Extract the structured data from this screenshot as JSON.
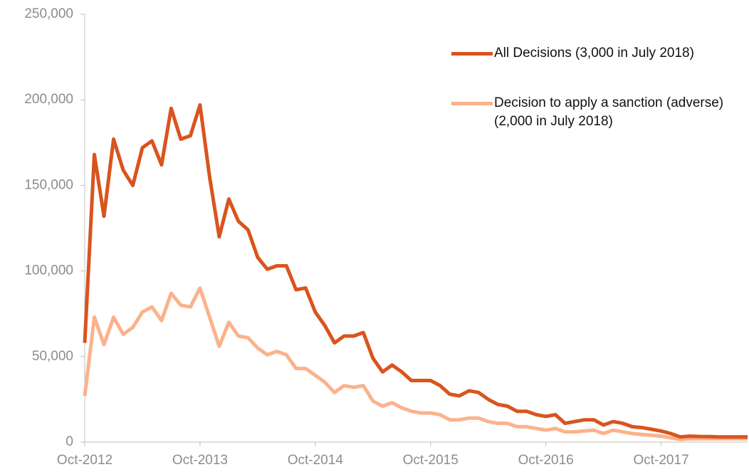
{
  "chart_data": {
    "type": "line",
    "categories": [
      "Oct-2012",
      null,
      null,
      null,
      null,
      null,
      null,
      null,
      null,
      null,
      null,
      null,
      "Oct-2013",
      null,
      null,
      null,
      null,
      null,
      null,
      null,
      null,
      null,
      null,
      null,
      "Oct-2014",
      null,
      null,
      null,
      null,
      null,
      null,
      null,
      null,
      null,
      null,
      null,
      "Oct-2015",
      null,
      null,
      null,
      null,
      null,
      null,
      null,
      null,
      null,
      null,
      null,
      "Oct-2016",
      null,
      null,
      null,
      null,
      null,
      null,
      null,
      null,
      null,
      null,
      null,
      "Oct-2017",
      null,
      null,
      null,
      null,
      null,
      null,
      null,
      null,
      null
    ],
    "series": [
      {
        "name": "All Decisions (3,000 in July 2018)",
        "color": "#d9541e",
        "values": [
          58000,
          168000,
          132000,
          177000,
          159000,
          150000,
          172000,
          176000,
          162000,
          195000,
          177000,
          179000,
          197000,
          155000,
          120000,
          142000,
          129000,
          124000,
          108000,
          101000,
          103000,
          103000,
          89000,
          90000,
          76000,
          68000,
          58000,
          62000,
          62000,
          64000,
          49000,
          41000,
          45000,
          41000,
          36000,
          36000,
          36000,
          33000,
          28000,
          27000,
          30000,
          29000,
          25000,
          22000,
          21000,
          18000,
          18000,
          16000,
          15000,
          16000,
          11000,
          12000,
          13000,
          13000,
          10000,
          12000,
          11000,
          9000,
          8500,
          7500,
          6500,
          5000,
          3000,
          3500,
          3300,
          3200,
          3000,
          3000,
          3000,
          3000
        ]
      },
      {
        "name": "Decision to apply a sanction (adverse) (2,000 in July 2018)",
        "color": "#fbb28c",
        "values": [
          27000,
          73000,
          57000,
          73000,
          63000,
          67000,
          76000,
          79000,
          71000,
          87000,
          80000,
          79000,
          90000,
          73000,
          56000,
          70000,
          62000,
          61000,
          55000,
          51000,
          53000,
          51000,
          43000,
          43000,
          39000,
          35000,
          29000,
          33000,
          32000,
          33000,
          24000,
          21000,
          23000,
          20000,
          18000,
          17000,
          17000,
          16000,
          13000,
          13000,
          14000,
          14000,
          12000,
          11000,
          11000,
          9000,
          9000,
          8000,
          7000,
          8000,
          6000,
          6000,
          6500,
          7000,
          5000,
          7000,
          6000,
          5000,
          4500,
          4000,
          3500,
          2500,
          1500,
          2000,
          2000,
          2000,
          2000,
          2000,
          2000,
          2000
        ]
      }
    ],
    "ylim": [
      0,
      250000
    ],
    "yticks": [
      0,
      {
        "value": 50000,
        "label": "50,000"
      },
      {
        "value": 100000,
        "label": "100,000"
      },
      {
        "value": 150000,
        "label": "150,000"
      },
      {
        "value": 200000,
        "label": "200,000"
      },
      {
        "value": 250000,
        "label": "250,000"
      }
    ],
    "legend": "upper right"
  }
}
